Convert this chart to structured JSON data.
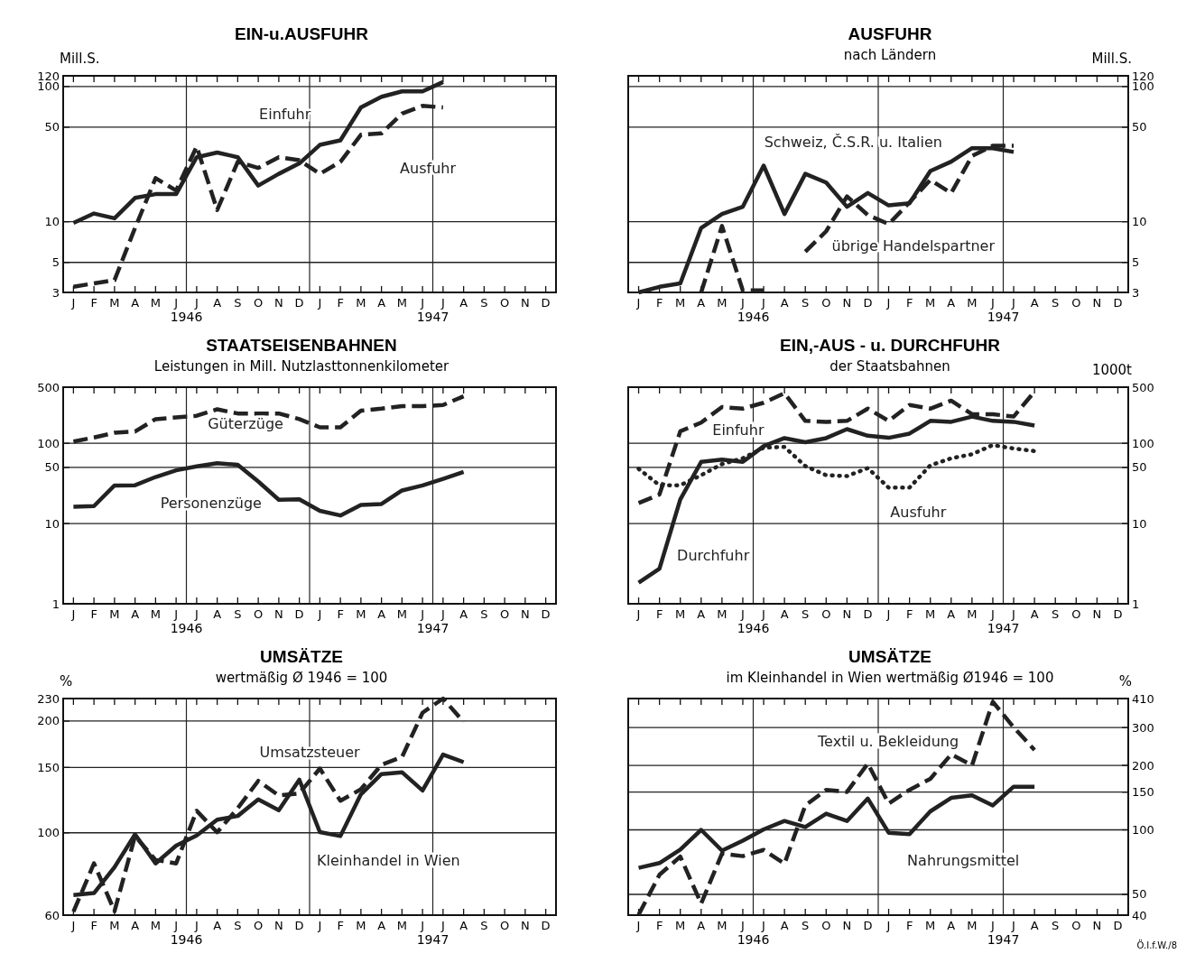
{
  "chart_data": [
    {
      "type": "line",
      "title": "EIN-u.AUSFUHR",
      "ylabel": "Mill.S.",
      "log": "y",
      "grid": true,
      "legend": false,
      "marker": "none",
      "categories": [
        "J",
        "F",
        "M",
        "A",
        "M",
        "J",
        "J",
        "A",
        "S",
        "O",
        "N",
        "D",
        "J",
        "F",
        "M",
        "A",
        "M",
        "J",
        "J",
        "A",
        "S",
        "O",
        "N",
        "D"
      ],
      "ylim": [
        3,
        120
      ],
      "yticks": [
        3,
        5,
        10,
        50,
        100,
        120
      ],
      "annotations": [
        "1946",
        "1947"
      ],
      "series": [
        {
          "name": "Einfuhr",
          "color": "#222222",
          "line_style": "solid",
          "values": [
            9.8,
            11.5,
            10.6,
            15,
            16,
            16,
            30,
            32.5,
            30,
            18.5,
            22.6,
            27,
            37,
            40,
            70,
            84,
            92,
            92,
            108,
            null,
            null,
            null,
            null,
            null
          ]
        },
        {
          "name": "Ausfuhr",
          "color": "#222222",
          "line_style": "dashed",
          "values": [
            3.3,
            3.5,
            3.7,
            9,
            21,
            17,
            36,
            12.2,
            27.7,
            25,
            30,
            28.5,
            22.6,
            27.7,
            44,
            45,
            63,
            72,
            70,
            null,
            null,
            null,
            null,
            null
          ]
        }
      ]
    },
    {
      "type": "line",
      "title": "AUSFUHR",
      "subtitle": "nach Ländern",
      "y2label": "Mill.S.",
      "grid": true,
      "log": "y2",
      "legend": false,
      "marker": "none",
      "categories": [
        "J",
        "F",
        "M",
        "A",
        "M",
        "J",
        "J",
        "A",
        "S",
        "O",
        "N",
        "D",
        "J",
        "F",
        "M",
        "A",
        "M",
        "J",
        "J",
        "A",
        "S",
        "O",
        "N",
        "D"
      ],
      "y2lim": [
        3,
        120
      ],
      "y2ticks": [
        3,
        5,
        10,
        50,
        100,
        120
      ],
      "annotations": [
        "1946",
        "1947"
      ],
      "series": [
        {
          "name": "Schweiz, Č.S.R. u. Italien",
          "color": "#222222",
          "line_style": "solid",
          "axis": "y2",
          "values": [
            3.0,
            3.3,
            3.5,
            9.0,
            11.4,
            12.9,
            26,
            11.4,
            22.6,
            19.5,
            12.9,
            16.3,
            13.2,
            13.7,
            23.7,
            27.8,
            35,
            35,
            32.8,
            null,
            null,
            null,
            null,
            null
          ]
        },
        {
          "name": "übrige Handelspartner",
          "color": "#222222",
          "line_style": "dashed",
          "axis": "y2",
          "values": [
            null,
            null,
            null,
            3.0,
            9.3,
            3.1,
            3.1,
            null,
            6.0,
            8.5,
            15.4,
            11.2,
            9.6,
            13.9,
            20.4,
            16.3,
            30.6,
            36.5,
            36.5,
            null,
            null,
            null,
            null,
            null
          ]
        }
      ]
    },
    {
      "type": "line",
      "title": "STAATSEISENBAHNEN",
      "subtitle": "Leistungen in Mill. Nutzlasttonnenkilometer",
      "log": "y",
      "grid": true,
      "legend": false,
      "marker": "none",
      "categories": [
        "J",
        "F",
        "M",
        "A",
        "M",
        "J",
        "J",
        "A",
        "S",
        "O",
        "N",
        "D",
        "J",
        "F",
        "M",
        "A",
        "M",
        "J",
        "J",
        "A",
        "S",
        "O",
        "N",
        "D"
      ],
      "ylim": [
        1,
        500
      ],
      "yticks": [
        1,
        10,
        50,
        100,
        500
      ],
      "annotations": [
        "1946",
        "1947"
      ],
      "series": [
        {
          "name": "Güterzüge",
          "color": "#222222",
          "line_style": "dashed",
          "values": [
            105,
            118,
            135,
            140,
            200,
            210,
            220,
            265,
            235,
            235,
            235,
            200,
            158,
            158,
            255,
            270,
            290,
            290,
            300,
            385,
            null,
            null,
            null,
            null
          ]
        },
        {
          "name": "Personenzüge",
          "color": "#222222",
          "line_style": "solid",
          "values": [
            16.2,
            16.5,
            29.8,
            30,
            38,
            46,
            51.5,
            56.5,
            54,
            33.4,
            19.8,
            20,
            14.4,
            12.6,
            17,
            17.5,
            25.8,
            29.8,
            36,
            44,
            null,
            null,
            null,
            null
          ]
        }
      ]
    },
    {
      "type": "line",
      "title": "EIN,-AUS - u. DURCHFUHR",
      "subtitle": "der Staatsbahnen",
      "y2label": "1000t",
      "log": "y2",
      "grid": true,
      "legend": false,
      "marker": "none",
      "categories": [
        "J",
        "F",
        "M",
        "A",
        "M",
        "J",
        "J",
        "A",
        "S",
        "O",
        "N",
        "D",
        "J",
        "F",
        "M",
        "A",
        "M",
        "J",
        "J",
        "A",
        "S",
        "O",
        "N",
        "D"
      ],
      "y2lim": [
        1,
        500
      ],
      "y2ticks": [
        1,
        10,
        50,
        100,
        500
      ],
      "annotations": [
        "1946",
        "1947"
      ],
      "series": [
        {
          "name": "Einfuhr",
          "color": "#222222",
          "line_style": "dashed",
          "axis": "y2",
          "values": [
            18,
            23,
            141,
            181,
            283,
            270,
            320,
            420,
            190,
            185,
            190,
            270,
            190,
            300,
            270,
            340,
            230,
            230,
            215,
            440,
            null,
            null,
            null,
            null
          ]
        },
        {
          "name": "Durchfuhr",
          "color": "#222222",
          "line_style": "solid",
          "axis": "y2",
          "values": [
            1.83,
            2.74,
            20,
            58.6,
            62.5,
            58.6,
            92,
            116,
            103,
            116,
            150,
            124,
            117,
            132,
            190,
            185,
            215,
            190,
            185,
            166,
            null,
            null,
            null,
            null
          ]
        },
        {
          "name": "Ausfuhr",
          "color": "#222222",
          "line_style": "dotted",
          "axis": "y2",
          "values": [
            48,
            30,
            30,
            40,
            55,
            65,
            88,
            90,
            52,
            40,
            39,
            49,
            28,
            28,
            53,
            65,
            73,
            95,
            86,
            80,
            null,
            null,
            null,
            null
          ]
        }
      ]
    },
    {
      "type": "line",
      "title": "UMSÄTZE",
      "subtitle": "wertmäßig Ø 1946 = 100",
      "ylabel": "%",
      "log": "y",
      "grid": true,
      "legend": false,
      "marker": "none",
      "categories": [
        "J",
        "F",
        "M",
        "A",
        "M",
        "J",
        "J",
        "A",
        "S",
        "O",
        "N",
        "D",
        "J",
        "F",
        "M",
        "A",
        "M",
        "J",
        "J",
        "A",
        "S",
        "O",
        "N",
        "D"
      ],
      "ylim": [
        60,
        230
      ],
      "yticks": [
        60,
        100,
        150,
        200,
        230
      ],
      "annotations": [
        "1946",
        "1947"
      ],
      "series": [
        {
          "name": "Umsatzsteuer",
          "color": "#222222",
          "line_style": "dashed",
          "values": [
            61.3,
            82.7,
            61.5,
            98,
            84.5,
            82.7,
            114.6,
            100.3,
            116.5,
            138,
            126,
            127.7,
            149,
            122,
            131,
            152.5,
            160,
            210.6,
            230,
            199,
            null,
            null,
            null,
            null
          ]
        },
        {
          "name": "Kleinhandel in Wien",
          "color": "#222222",
          "line_style": "solid",
          "values": [
            68,
            68.8,
            80.8,
            99,
            82.7,
            92.3,
            98.3,
            108.5,
            111,
            123,
            115,
            139,
            100.4,
            98,
            127,
            144,
            145.6,
            130,
            162.5,
            155,
            null,
            null,
            null,
            null
          ]
        }
      ]
    },
    {
      "type": "line",
      "title": "UMSÄTZE",
      "subtitle": "im Kleinhandel in Wien wertmäßig Ø1946 = 100",
      "y2label": "%",
      "log": "y2",
      "grid": true,
      "legend": false,
      "marker": "none",
      "categories": [
        "J",
        "F",
        "M",
        "A",
        "M",
        "J",
        "J",
        "A",
        "S",
        "O",
        "N",
        "D",
        "J",
        "F",
        "M",
        "A",
        "M",
        "J",
        "J",
        "A",
        "S",
        "O",
        "N",
        "D"
      ],
      "y2lim": [
        40,
        410
      ],
      "y2ticks": [
        40,
        50,
        100,
        150,
        200,
        300,
        410
      ],
      "annotations": [
        "1946",
        "1947",
        "Ö.I.f.W./8"
      ],
      "series": [
        {
          "name": "Textil u. Bekleidung",
          "color": "#222222",
          "line_style": "dashed",
          "axis": "y2",
          "values": [
            40.2,
            61.7,
            75,
            45.3,
            77.5,
            75.4,
            80.6,
            69.5,
            130,
            153.7,
            150.4,
            204,
            132.7,
            153.7,
            173,
            225,
            200,
            396,
            301,
            236,
            null,
            null,
            null,
            null
          ]
        },
        {
          "name": "Nahrungsmittel",
          "color": "#222222",
          "line_style": "solid",
          "axis": "y2",
          "values": [
            66.5,
            70,
            80.9,
            100,
            80,
            89,
            100.5,
            110,
            103,
            119,
            110,
            140,
            97,
            95.6,
            122,
            141,
            145,
            130,
            159,
            159,
            null,
            null,
            null,
            null
          ]
        }
      ]
    }
  ]
}
